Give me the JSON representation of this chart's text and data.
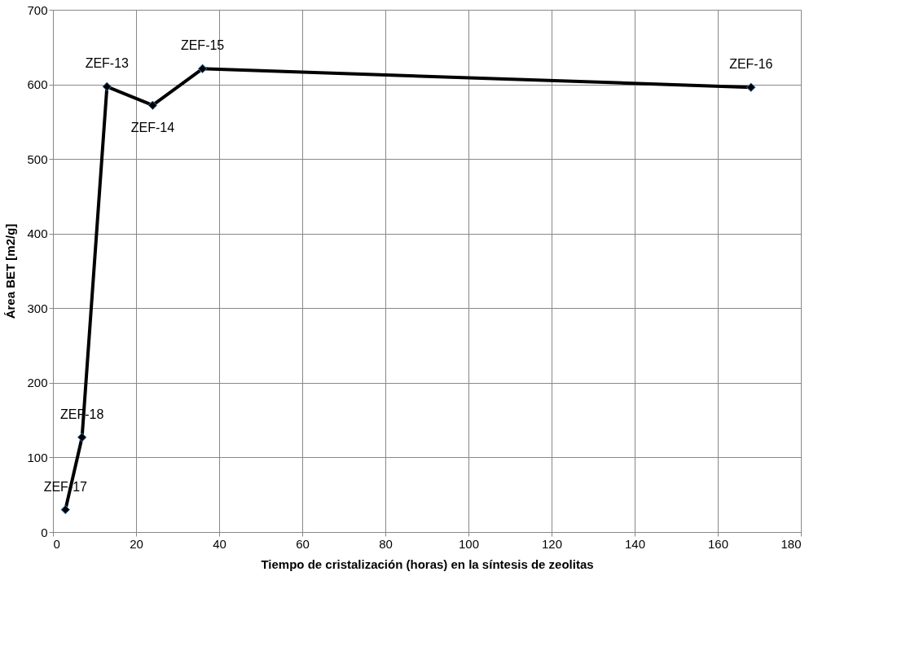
{
  "chart_data": {
    "type": "line",
    "xlabel": "Tiempo de cristalización (horas) en la síntesis de zeolitas",
    "ylabel": "Área BET [m2/g]",
    "x": [
      3,
      7,
      13,
      24,
      36,
      168
    ],
    "series": [
      {
        "color": "#000000",
        "values": [
          30,
          127,
          597,
          572,
          621,
          596
        ]
      }
    ],
    "xlim": [
      0,
      180
    ],
    "xticks": [
      0,
      20,
      40,
      60,
      80,
      100,
      120,
      140,
      160,
      180
    ],
    "ylim": [
      0,
      700
    ],
    "yticks": [
      0,
      100,
      200,
      300,
      400,
      500,
      600,
      700
    ],
    "grid": true,
    "marker": "diamond",
    "line_style": "solid",
    "annotations": [
      {
        "text": "ZEF-17",
        "x": 3,
        "y": 30
      },
      {
        "text": "ZEF-18",
        "x": 7,
        "y": 127
      },
      {
        "text": "ZEF-13",
        "x": 13,
        "y": 597
      },
      {
        "text": "ZEF-14",
        "x": 24,
        "y": 572
      },
      {
        "text": "ZEF-15",
        "x": 36,
        "y": 621
      },
      {
        "text": "ZEF-16",
        "x": 168,
        "y": 596
      }
    ]
  }
}
